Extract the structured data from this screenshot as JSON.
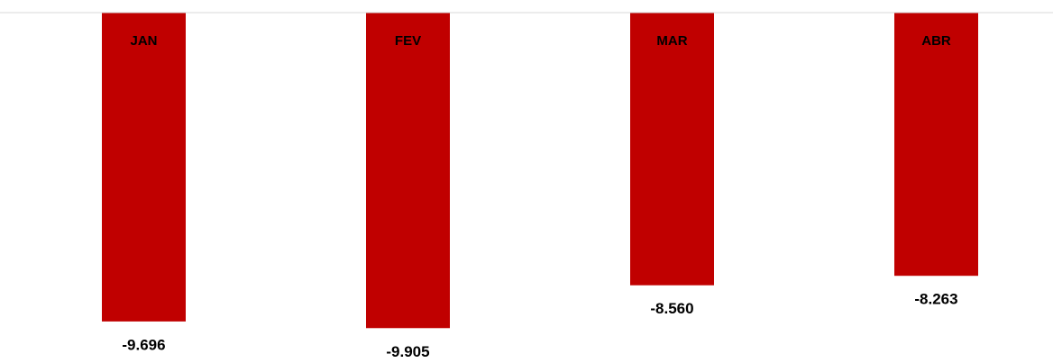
{
  "chart_data": {
    "type": "bar",
    "categories": [
      "JAN",
      "FEV",
      "MAR",
      "ABR"
    ],
    "values": [
      -9.696,
      -9.905,
      -8.56,
      -8.263
    ],
    "value_labels": [
      "-9.696",
      "-9.905",
      "-8.560",
      "-8.263"
    ],
    "color": "#c00000",
    "ylim": [
      -11,
      0
    ]
  }
}
